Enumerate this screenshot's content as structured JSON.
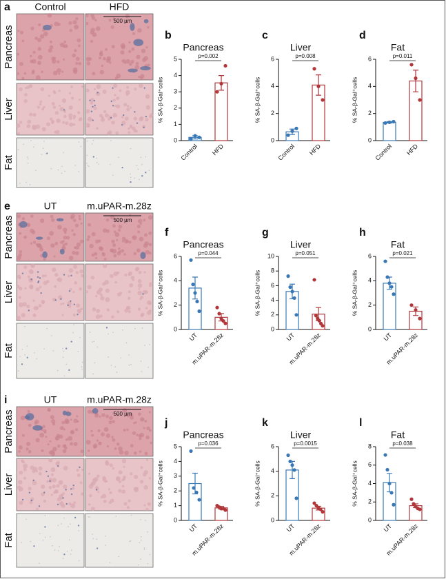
{
  "micrographs": [
    {
      "panel": "a",
      "columns": [
        "Control",
        "HFD"
      ],
      "rows": [
        "Pancreas",
        "Liver",
        "Fat"
      ],
      "scale_bar": "500 µm"
    },
    {
      "panel": "e",
      "columns": [
        "UT",
        "m.uPAR-m.28z"
      ],
      "rows": [
        "Pancreas",
        "Liver",
        "Fat"
      ],
      "scale_bar": "500 µm"
    },
    {
      "panel": "i",
      "columns": [
        "UT",
        "m.uPAR-m.28z"
      ],
      "rows": [
        "Pancreas",
        "Liver",
        "Fat"
      ],
      "scale_bar": "500 µm"
    }
  ],
  "chart_data": [
    {
      "type": "bar",
      "panel": "b",
      "title": "Pancreas",
      "ylabel": "% SA-β-Gal⁺cells",
      "categories": [
        "Control",
        "HFD"
      ],
      "values": [
        0.2,
        3.55
      ],
      "errors": [
        0.1,
        0.45
      ],
      "points": [
        [
          0.1,
          0.3,
          0.2
        ],
        [
          3.0,
          3.5,
          4.6
        ]
      ],
      "colors": [
        "#3a78b5",
        "#b0363a"
      ],
      "ylim": [
        0,
        5
      ],
      "yticks": [
        0,
        1,
        2,
        3,
        4,
        5
      ],
      "annotation": "p=0.002"
    },
    {
      "type": "bar",
      "panel": "c",
      "title": "Liver",
      "ylabel": "% SA-β-Gal⁺cells",
      "categories": [
        "Control",
        "HFD"
      ],
      "values": [
        0.65,
        4.1
      ],
      "errors": [
        0.2,
        0.75
      ],
      "points": [
        [
          0.4,
          0.7,
          0.9
        ],
        [
          5.3,
          4.0,
          3.0
        ]
      ],
      "colors": [
        "#3a78b5",
        "#b0363a"
      ],
      "ylim": [
        0,
        6
      ],
      "yticks": [
        0,
        2,
        4,
        6
      ],
      "annotation": "p=0.008"
    },
    {
      "type": "bar",
      "panel": "d",
      "title": "Fat",
      "ylabel": "% SA-β-Gal⁺cells",
      "categories": [
        "Control",
        "HFD"
      ],
      "values": [
        1.35,
        4.4
      ],
      "errors": [
        0.05,
        0.8
      ],
      "points": [
        [
          1.3,
          1.35,
          1.4
        ],
        [
          5.6,
          4.6,
          3.0
        ]
      ],
      "colors": [
        "#3a78b5",
        "#b0363a"
      ],
      "ylim": [
        0,
        6
      ],
      "yticks": [
        0,
        2,
        4,
        6
      ],
      "annotation": "p=0.011"
    },
    {
      "type": "bar",
      "panel": "f",
      "title": "Pancreas",
      "ylabel": "% SA-β-Gal⁺cells",
      "categories": [
        "UT",
        "m.uPAR-m.28z"
      ],
      "values": [
        3.4,
        1.0
      ],
      "errors": [
        0.9,
        0.3
      ],
      "points": [
        [
          5.7,
          3.7,
          3.0,
          2.3,
          1.5
        ],
        [
          1.8,
          1.3,
          0.9,
          0.7,
          0.5
        ]
      ],
      "colors": [
        "#3a78b5",
        "#b0363a"
      ],
      "ylim": [
        0,
        6
      ],
      "yticks": [
        0,
        2,
        4,
        6
      ],
      "annotation": "p=0.044"
    },
    {
      "type": "bar",
      "panel": "g",
      "title": "Liver",
      "ylabel": "% SA-β-Gal⁺cells",
      "categories": [
        "UT",
        "m.uPAR-m.28z"
      ],
      "values": [
        5.2,
        2.1
      ],
      "errors": [
        1.0,
        0.9
      ],
      "points": [
        [
          7.3,
          5.8,
          5.2,
          4.3,
          2.0
        ],
        [
          6.8,
          1.9,
          1.5,
          1.2,
          0.8,
          0.5
        ]
      ],
      "colors": [
        "#3a78b5",
        "#b0363a"
      ],
      "ylim": [
        0,
        10
      ],
      "yticks": [
        0,
        2,
        4,
        6,
        8,
        10
      ],
      "annotation": "p=0.051"
    },
    {
      "type": "bar",
      "panel": "h",
      "title": "Fat",
      "ylabel": "% SA-β-Gal⁺cells",
      "categories": [
        "UT",
        "m.uPAR-m.28z"
      ],
      "values": [
        3.8,
        1.5
      ],
      "errors": [
        0.5,
        0.35
      ],
      "points": [
        [
          5.6,
          4.3,
          3.8,
          3.5,
          2.9
        ],
        [
          2.0,
          1.6,
          0.9
        ]
      ],
      "colors": [
        "#3a78b5",
        "#b0363a"
      ],
      "ylim": [
        0,
        6
      ],
      "yticks": [
        0,
        2,
        4,
        6
      ],
      "annotation": "p=0.021"
    },
    {
      "type": "bar",
      "panel": "j",
      "title": "Pancreas",
      "ylabel": "% SA-β-Gal⁺cells",
      "categories": [
        "UT",
        "m.uPAR-m.28z"
      ],
      "values": [
        2.5,
        0.85
      ],
      "errors": [
        0.7,
        0.1
      ],
      "points": [
        [
          4.7,
          2.2,
          1.9,
          1.4
        ],
        [
          1.0,
          0.9,
          0.8,
          0.8,
          0.7
        ]
      ],
      "colors": [
        "#3a78b5",
        "#b0363a"
      ],
      "ylim": [
        0,
        5
      ],
      "yticks": [
        0,
        1,
        2,
        3,
        4,
        5
      ],
      "annotation": "p=0.036"
    },
    {
      "type": "bar",
      "panel": "k",
      "title": "Liver",
      "ylabel": "% SA-β-Gal⁺cells",
      "categories": [
        "UT",
        "m.uPAR-m.28z"
      ],
      "values": [
        4.1,
        1.0
      ],
      "errors": [
        0.7,
        0.15
      ],
      "points": [
        [
          5.3,
          4.8,
          4.5,
          4.1,
          1.8
        ],
        [
          1.4,
          1.2,
          1.0,
          0.9,
          0.7
        ]
      ],
      "colors": [
        "#3a78b5",
        "#b0363a"
      ],
      "ylim": [
        0,
        6
      ],
      "yticks": [
        0,
        2,
        4,
        6
      ],
      "annotation": "p=0.0015"
    },
    {
      "type": "bar",
      "panel": "l",
      "title": "Fat",
      "ylabel": "% SA-β-Gal⁺cells",
      "categories": [
        "UT",
        "m.uPAR-m.28z"
      ],
      "values": [
        4.1,
        1.6
      ],
      "errors": [
        1.0,
        0.2
      ],
      "points": [
        [
          7.1,
          5.5,
          4.0,
          3.0,
          1.7
        ],
        [
          2.3,
          1.8,
          1.5,
          1.3,
          1.2
        ]
      ],
      "colors": [
        "#3a78b5",
        "#b0363a"
      ],
      "ylim": [
        0,
        8
      ],
      "yticks": [
        0,
        2,
        4,
        6,
        8
      ],
      "annotation": "p=0.038"
    }
  ]
}
